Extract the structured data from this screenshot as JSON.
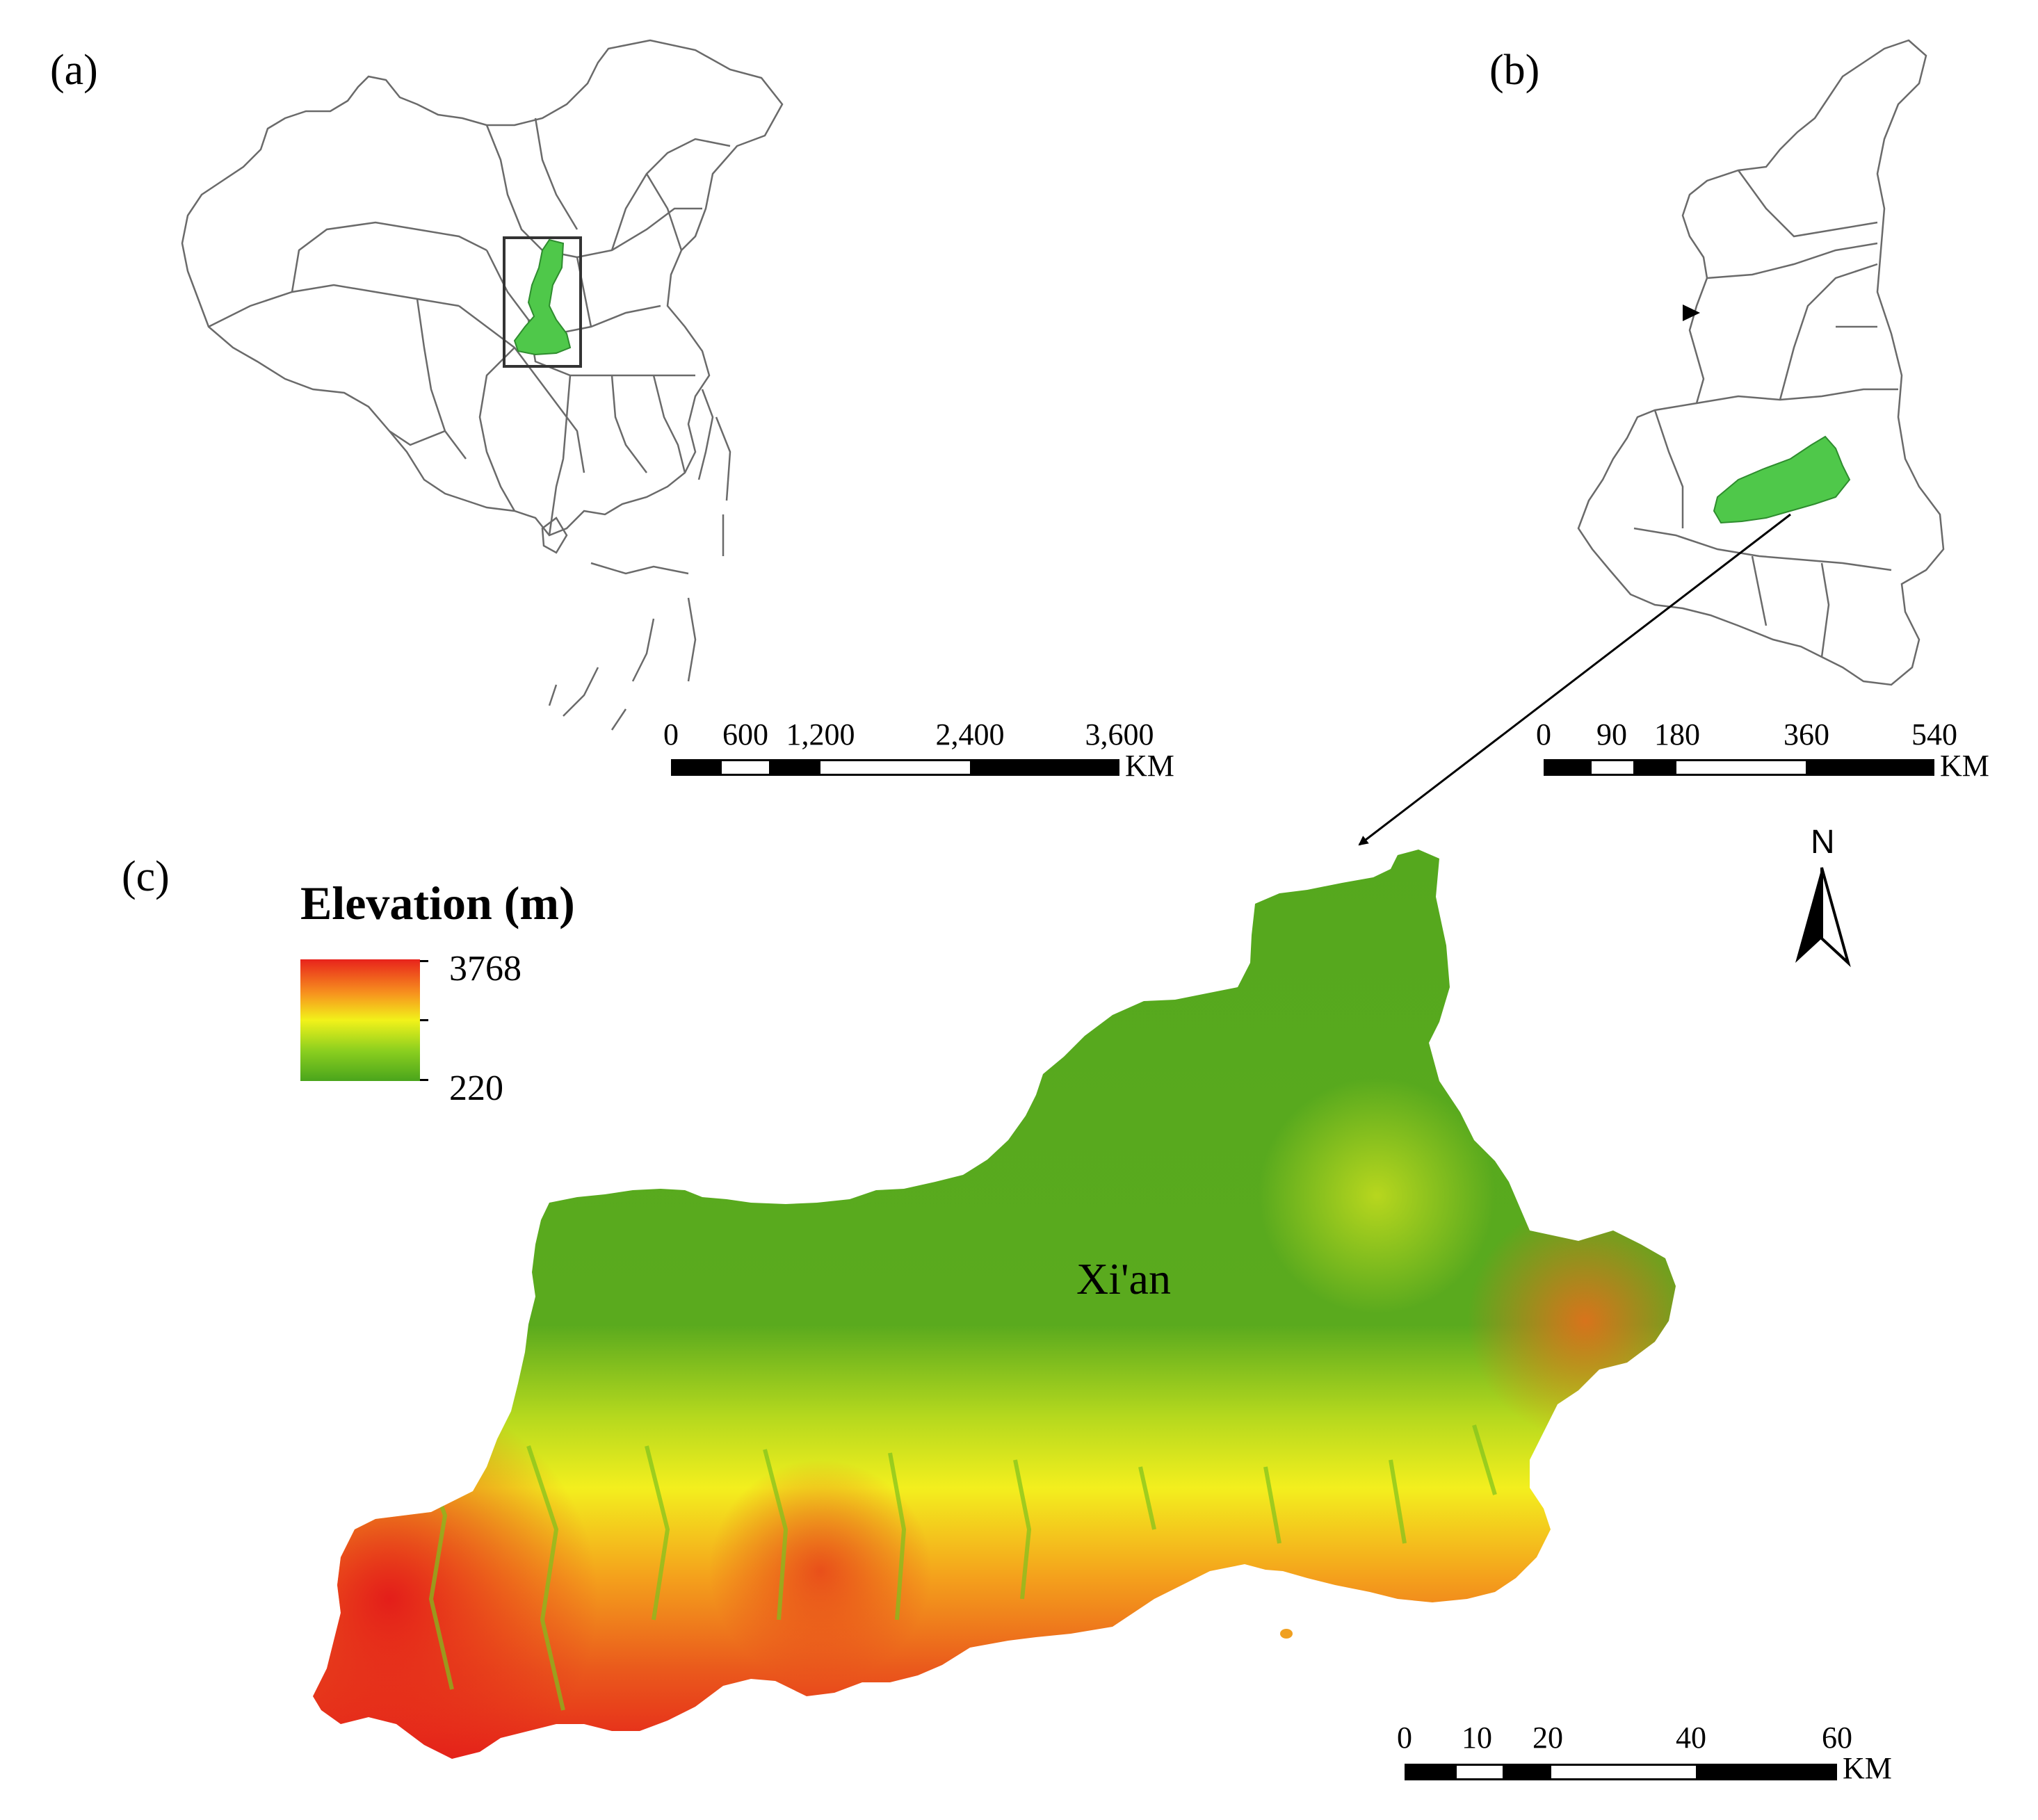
{
  "panels": {
    "a": {
      "label": "(a)"
    },
    "b": {
      "label": "(b)"
    },
    "c": {
      "label": "(c)"
    }
  },
  "scalebars": {
    "a": {
      "ticks": [
        "0",
        "600",
        "1,200",
        "2,400",
        "3,600"
      ],
      "values": [
        0,
        600,
        1200,
        2400,
        3600
      ],
      "unit": "KM"
    },
    "b": {
      "ticks": [
        "0",
        "90",
        "180",
        "360",
        "540"
      ],
      "values": [
        0,
        90,
        180,
        360,
        540
      ],
      "unit": "KM"
    },
    "c": {
      "ticks": [
        "0",
        "10",
        "20",
        "40",
        "60"
      ],
      "values": [
        0,
        10,
        20,
        40,
        60
      ],
      "unit": "KM"
    }
  },
  "legend": {
    "title": "Elevation (m)",
    "max_label": "3768",
    "min_label": "220",
    "colors": [
      "#e8231c",
      "#f7931e",
      "#f2f21a",
      "#8ccf1f",
      "#4aa51c"
    ]
  },
  "place_label": "Xi'an",
  "north_arrow": {
    "label": "N"
  },
  "colors": {
    "highlight": "#4fc84a",
    "outline": "#6a6a6a",
    "dem_low": "#4ea31c",
    "dem_mid": "#f3ef1e",
    "dem_high": "#e5231a"
  }
}
